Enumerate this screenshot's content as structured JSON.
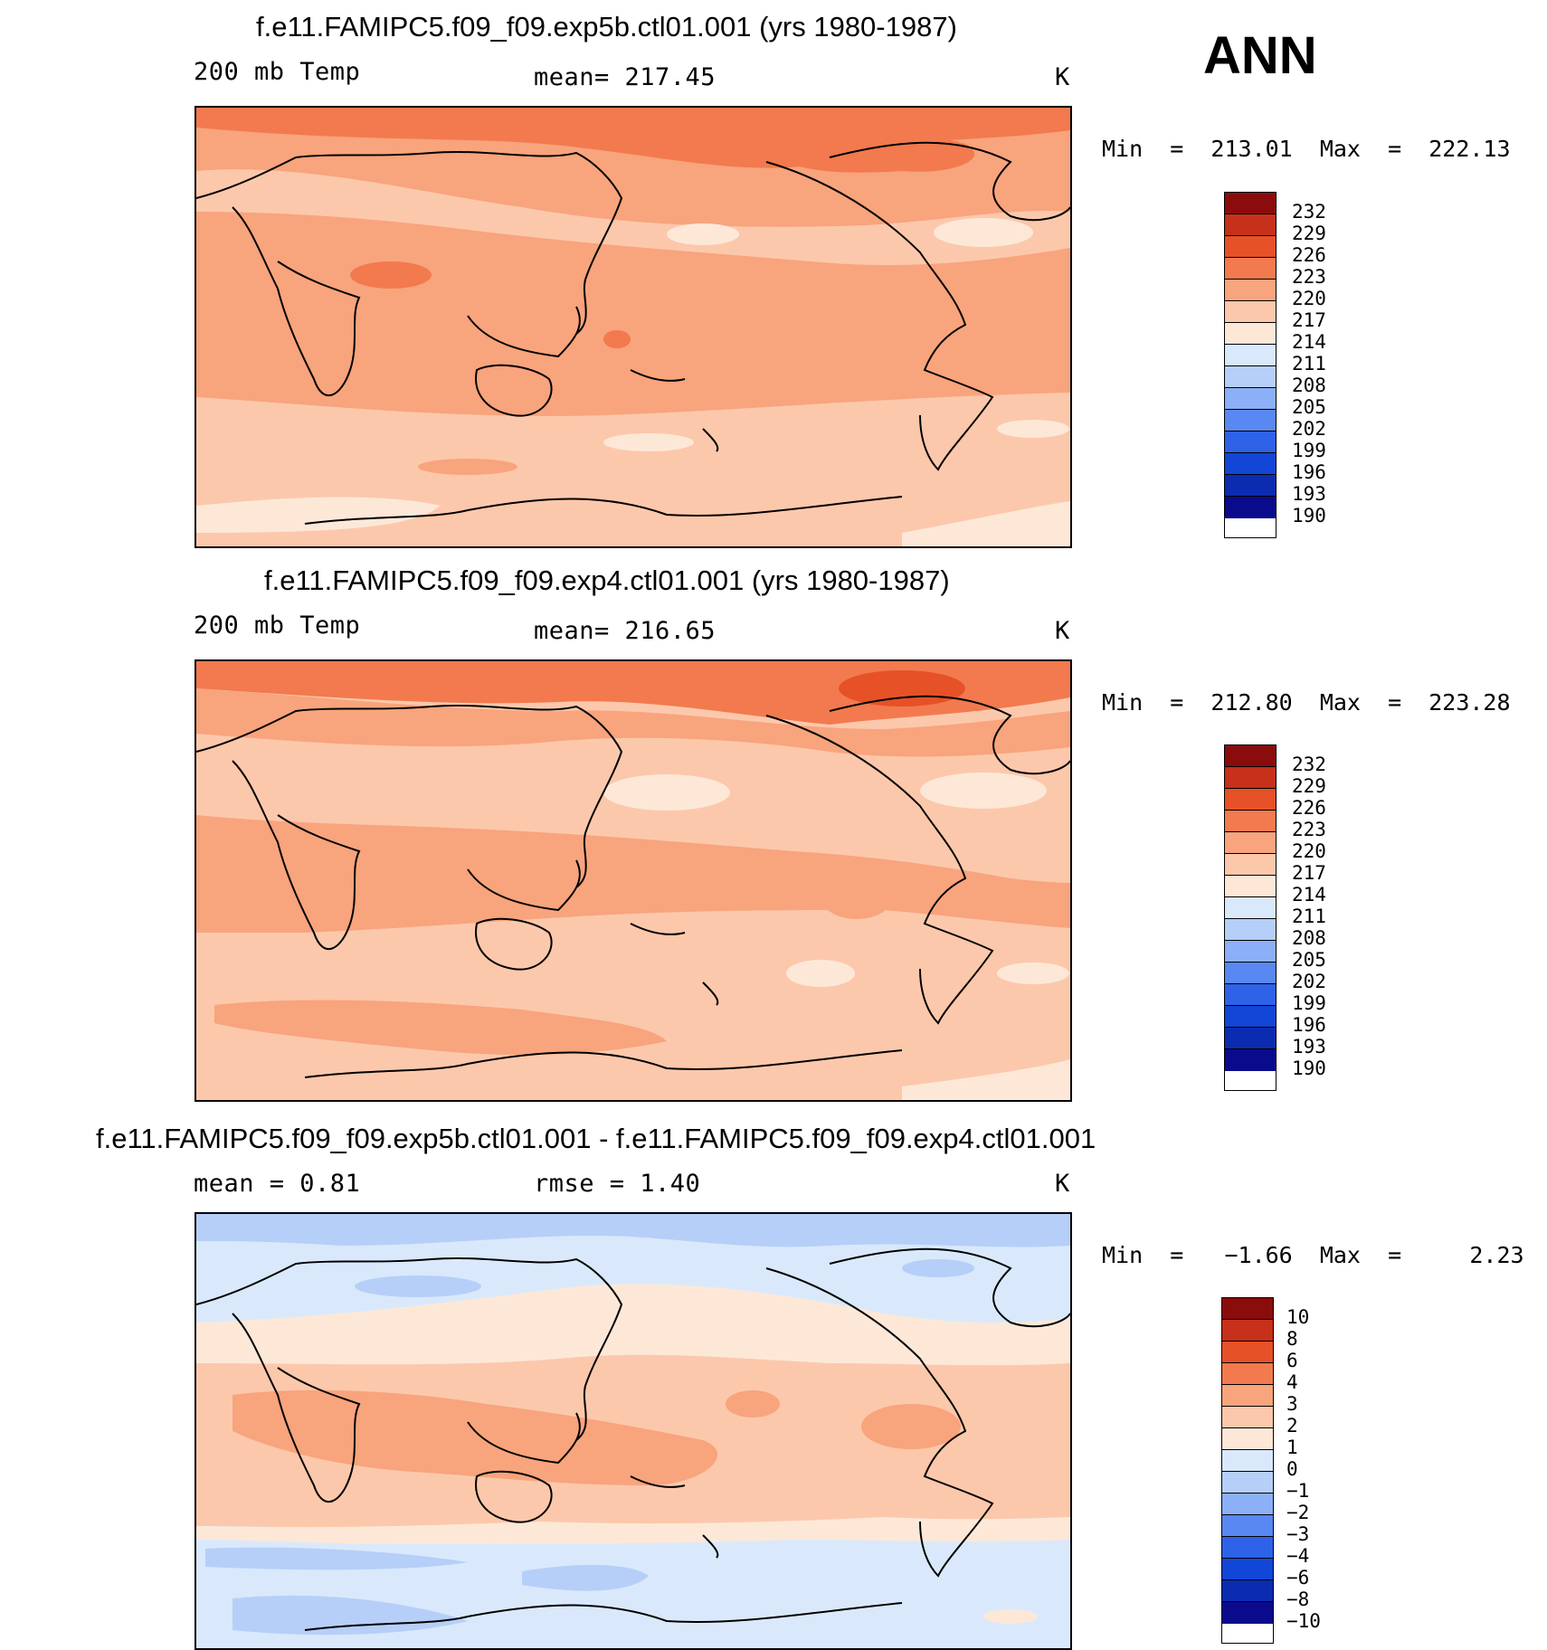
{
  "season": "ANN",
  "colors": {
    "abs_scale": [
      "#0a0a8c",
      "#0b2cb0",
      "#1246d6",
      "#2e62e8",
      "#5a88f2",
      "#8cb0f7",
      "#b6cff8",
      "#d9e9fb",
      "#fde8d8",
      "#fcc8ab",
      "#f8a47d",
      "#f27a4e",
      "#e65128",
      "#c7301a",
      "#8a0c0c"
    ],
    "diff_scale": [
      "#0a0a8c",
      "#0b2cb0",
      "#1246d6",
      "#2e62e8",
      "#5a88f2",
      "#8cb0f7",
      "#b6cff8",
      "#d9e9fb",
      "#fde8d8",
      "#fcc8ab",
      "#f8a47d",
      "#f27a4e",
      "#e65128",
      "#c7301a",
      "#8a0c0c"
    ]
  },
  "panels": [
    {
      "title": "f.e11.FAMIPC5.f09_f09.exp5b.ctl01.001 (yrs 1980-1987)",
      "left_label": "200 mb Temp",
      "mid_label": "mean=  217.45",
      "units": "K",
      "minmax": "Min  =  213.01  Max  =  222.13",
      "ticks": [
        "232",
        "229",
        "226",
        "223",
        "220",
        "217",
        "214",
        "211",
        "208",
        "205",
        "202",
        "199",
        "196",
        "193",
        "190"
      ]
    },
    {
      "title": "f.e11.FAMIPC5.f09_f09.exp4.ctl01.001 (yrs 1980-1987)",
      "left_label": "200 mb Temp",
      "mid_label": "mean=  216.65",
      "units": "K",
      "minmax": "Min  =  212.80  Max  =  223.28",
      "ticks": [
        "232",
        "229",
        "226",
        "223",
        "220",
        "217",
        "214",
        "211",
        "208",
        "205",
        "202",
        "199",
        "196",
        "193",
        "190"
      ]
    },
    {
      "title": "f.e11.FAMIPC5.f09_f09.exp5b.ctl01.001 - f.e11.FAMIPC5.f09_f09.exp4.ctl01.001",
      "left_label": "mean =     0.81",
      "mid_label": "rmse =     1.40",
      "units": "K",
      "minmax": "Min  =   −1.66  Max  =     2.23",
      "ticks": [
        "10",
        "8",
        "6",
        "4",
        "3",
        "2",
        "1",
        "0",
        "−1",
        "−2",
        "−3",
        "−4",
        "−6",
        "−8",
        "−10"
      ]
    }
  ]
}
